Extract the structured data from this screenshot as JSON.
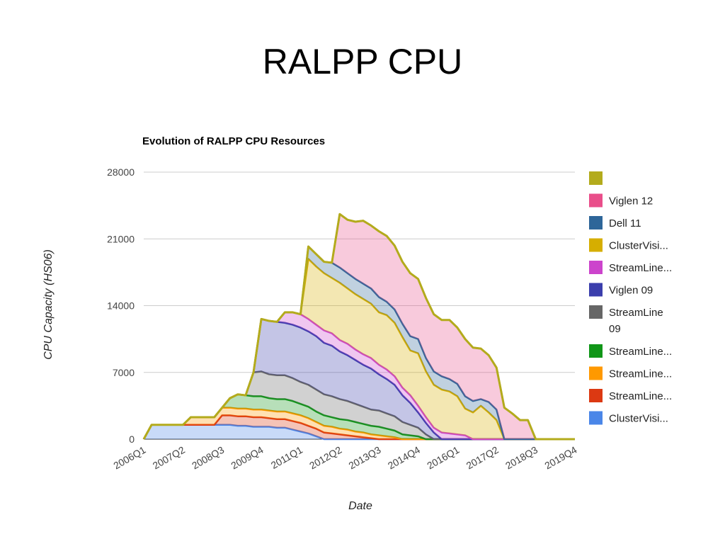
{
  "slide": {
    "title": "RALPP CPU"
  },
  "chart_data": {
    "type": "area",
    "stacked": true,
    "title": "Evolution of RALPP CPU Resources",
    "xlabel": "Date",
    "ylabel": "CPU Capacity (HS06)",
    "ylim": [
      0,
      28000
    ],
    "yticks": [
      "0",
      "7000",
      "14000",
      "21000",
      "28000"
    ],
    "xticks": [
      "2006Q1",
      "2007Q2",
      "2008Q3",
      "2009Q4",
      "2011Q1",
      "2012Q2",
      "2013Q3",
      "2014Q4",
      "2016Q1",
      "2017Q2",
      "2018Q3",
      "2019Q4"
    ],
    "x_quarters": [
      "2006Q1",
      "2006Q2",
      "2006Q3",
      "2006Q4",
      "2007Q1",
      "2007Q2",
      "2007Q3",
      "2007Q4",
      "2008Q1",
      "2008Q2",
      "2008Q3",
      "2008Q4",
      "2009Q1",
      "2009Q2",
      "2009Q3",
      "2009Q4",
      "2010Q1",
      "2010Q2",
      "2010Q3",
      "2010Q4",
      "2011Q1",
      "2011Q2",
      "2011Q3",
      "2011Q4",
      "2012Q1",
      "2012Q2",
      "2012Q3",
      "2012Q4",
      "2013Q1",
      "2013Q2",
      "2013Q3",
      "2013Q4",
      "2014Q1",
      "2014Q2",
      "2014Q3",
      "2014Q4",
      "2015Q1",
      "2015Q2",
      "2015Q3",
      "2015Q4",
      "2016Q1",
      "2016Q2",
      "2016Q3",
      "2016Q4",
      "2017Q1",
      "2017Q2",
      "2017Q3",
      "2017Q4",
      "2018Q1",
      "2018Q2",
      "2018Q3",
      "2018Q4",
      "2019Q1",
      "2019Q2",
      "2019Q3",
      "2019Q4"
    ],
    "legend_position": "right",
    "grid": true,
    "series": [
      {
        "name": "ClusterVisi...",
        "color": "#4a86e8",
        "values": [
          0,
          1500,
          1500,
          1500,
          1500,
          1500,
          1500,
          1500,
          1500,
          1500,
          1500,
          1500,
          1400,
          1400,
          1300,
          1300,
          1300,
          1200,
          1200,
          1000,
          800,
          600,
          300,
          0,
          0,
          0,
          0,
          0,
          0,
          0,
          0,
          0,
          0,
          0,
          0,
          0,
          0,
          0,
          0,
          0,
          0,
          0,
          0,
          0,
          0,
          0,
          0,
          0,
          0,
          0,
          0,
          0,
          0,
          0,
          0,
          0
        ]
      },
      {
        "name": "StreamLine...",
        "color": "#dc3912",
        "values": [
          0,
          0,
          0,
          0,
          0,
          0,
          0,
          0,
          0,
          0,
          1000,
          1000,
          1000,
          1000,
          1000,
          1000,
          900,
          900,
          900,
          900,
          900,
          800,
          800,
          700,
          600,
          500,
          400,
          300,
          200,
          100,
          0,
          0,
          0,
          0,
          0,
          0,
          0,
          0,
          0,
          0,
          0,
          0,
          0,
          0,
          0,
          0,
          0,
          0,
          0,
          0,
          0,
          0,
          0,
          0,
          0,
          0
        ]
      },
      {
        "name": "StreamLine...",
        "color": "#ff9900",
        "values": [
          0,
          0,
          0,
          0,
          0,
          0,
          800,
          800,
          800,
          800,
          800,
          800,
          800,
          800,
          800,
          800,
          800,
          800,
          800,
          800,
          800,
          800,
          700,
          700,
          700,
          600,
          600,
          500,
          500,
          400,
          400,
          300,
          200,
          0,
          0,
          0,
          0,
          0,
          0,
          0,
          0,
          0,
          0,
          0,
          0,
          0,
          0,
          0,
          0,
          0,
          0,
          0,
          0,
          0,
          0,
          0
        ]
      },
      {
        "name": "StreamLine...",
        "color": "#109618",
        "values": [
          0,
          0,
          0,
          0,
          0,
          0,
          0,
          0,
          0,
          0,
          0,
          1000,
          1500,
          1400,
          1400,
          1400,
          1300,
          1300,
          1300,
          1300,
          1200,
          1200,
          1100,
          1100,
          1000,
          1000,
          1000,
          1000,
          900,
          900,
          900,
          800,
          700,
          500,
          400,
          300,
          0,
          0,
          0,
          0,
          0,
          0,
          0,
          0,
          0,
          0,
          0,
          0,
          0,
          0,
          0,
          0,
          0,
          0,
          0,
          0
        ]
      },
      {
        "name": "StreamLine 09",
        "color": "#666666",
        "values": [
          0,
          0,
          0,
          0,
          0,
          0,
          0,
          0,
          0,
          0,
          0,
          0,
          0,
          0,
          2500,
          2600,
          2500,
          2500,
          2500,
          2400,
          2300,
          2300,
          2300,
          2200,
          2200,
          2100,
          2000,
          1900,
          1800,
          1700,
          1700,
          1600,
          1500,
          1300,
          1100,
          900,
          500,
          0,
          0,
          0,
          0,
          0,
          0,
          0,
          0,
          0,
          0,
          0,
          0,
          0,
          0,
          0,
          0,
          0,
          0,
          0
        ]
      },
      {
        "name": "Viglen 09",
        "color": "#3b3eac",
        "values": [
          0,
          0,
          0,
          0,
          0,
          0,
          0,
          0,
          0,
          0,
          0,
          0,
          0,
          0,
          0,
          5500,
          5600,
          5600,
          5500,
          5600,
          5700,
          5600,
          5600,
          5400,
          5300,
          5000,
          4800,
          4600,
          4400,
          4300,
          3800,
          3600,
          3300,
          2800,
          2300,
          1600,
          1200,
          700,
          0,
          0,
          0,
          0,
          0,
          0,
          0,
          0,
          0,
          0,
          0,
          0,
          0,
          0,
          0,
          0,
          0,
          0
        ]
      },
      {
        "name": "StreamLine...",
        "color": "#cc44cc",
        "values": [
          0,
          0,
          0,
          0,
          0,
          0,
          0,
          0,
          0,
          0,
          0,
          0,
          0,
          0,
          0,
          0,
          0,
          0,
          1100,
          1300,
          1400,
          1300,
          1200,
          1300,
          1300,
          1200,
          1200,
          1100,
          1100,
          1100,
          1000,
          1000,
          900,
          800,
          800,
          700,
          600,
          500,
          700,
          600,
          500,
          400,
          0,
          0,
          0,
          0,
          0,
          0,
          0,
          0,
          0,
          0,
          0,
          0,
          0,
          0
        ]
      },
      {
        "name": "ClusterVisi...",
        "color": "#d6ae00",
        "values": [
          0,
          0,
          0,
          0,
          0,
          0,
          0,
          0,
          0,
          0,
          0,
          0,
          0,
          0,
          0,
          0,
          0,
          0,
          0,
          0,
          0,
          6300,
          6100,
          6000,
          5800,
          6000,
          5800,
          5800,
          5800,
          5700,
          5500,
          5700,
          5600,
          5300,
          4700,
          5500,
          4800,
          4500,
          4500,
          4400,
          4000,
          2800,
          2800,
          3500,
          2800,
          2000,
          0,
          0,
          0,
          0,
          0,
          0,
          0,
          0,
          0,
          0
        ]
      },
      {
        "name": "Dell 11",
        "color": "#2e6699",
        "values": [
          0,
          0,
          0,
          0,
          0,
          0,
          0,
          0,
          0,
          0,
          0,
          0,
          0,
          0,
          0,
          0,
          0,
          0,
          0,
          0,
          0,
          1300,
          1300,
          1200,
          1600,
          1600,
          1600,
          1600,
          1600,
          1600,
          1600,
          1400,
          1400,
          1400,
          1500,
          1500,
          1400,
          1400,
          1400,
          1300,
          1300,
          1300,
          1200,
          700,
          1100,
          1100,
          0,
          0,
          0,
          0,
          0,
          0,
          0,
          0,
          0,
          0
        ]
      },
      {
        "name": "Viglen 12",
        "color": "#e94e8a",
        "values": [
          0,
          0,
          0,
          0,
          0,
          0,
          0,
          0,
          0,
          0,
          0,
          0,
          0,
          0,
          0,
          0,
          0,
          0,
          0,
          0,
          0,
          0,
          0,
          0,
          0,
          5600,
          5600,
          6000,
          6600,
          6600,
          6900,
          6900,
          6700,
          6500,
          6600,
          6300,
          6300,
          6000,
          5900,
          6200,
          5900,
          6000,
          5600,
          5300,
          4900,
          4400,
          3300,
          2700,
          2000,
          2000,
          0,
          0,
          0,
          0,
          0,
          0
        ]
      },
      {
        "name": "",
        "color": "#b3ab1c",
        "values": [
          0,
          0,
          0,
          0,
          0,
          0,
          0,
          0,
          0,
          0,
          0,
          0,
          0,
          0,
          0,
          0,
          0,
          0,
          0,
          0,
          0,
          0,
          0,
          0,
          0,
          0,
          0,
          0,
          0,
          0,
          0,
          0,
          0,
          0,
          0,
          0,
          0,
          0,
          0,
          0,
          0,
          0,
          0,
          0,
          0,
          0,
          0,
          0,
          0,
          0,
          0,
          0,
          0,
          0,
          0,
          0
        ]
      }
    ]
  }
}
